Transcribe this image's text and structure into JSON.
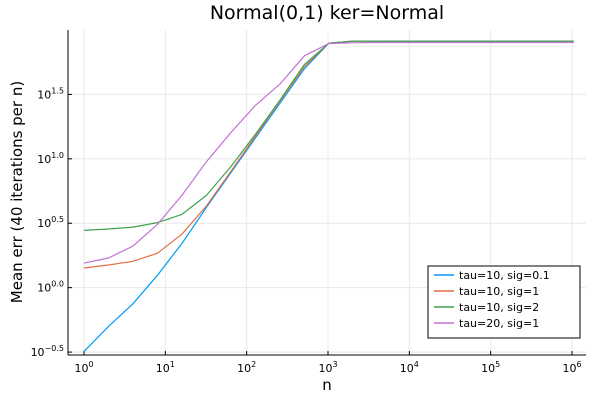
{
  "chart_data": {
    "type": "line",
    "title": "Normal(0,1) ker=Normal",
    "xlabel": "n",
    "ylabel": "Mean err (40 iterations per n)",
    "x_scale": "log10",
    "y_scale": "log10",
    "xlim": [
      1,
      1000000
    ],
    "ylim": [
      0.3,
      100
    ],
    "x_ticks": [
      {
        "value": 1,
        "base": "10",
        "exp": "0"
      },
      {
        "value": 10,
        "base": "10",
        "exp": "1"
      },
      {
        "value": 100,
        "base": "10",
        "exp": "2"
      },
      {
        "value": 1000,
        "base": "10",
        "exp": "3"
      },
      {
        "value": 10000,
        "base": "10",
        "exp": "4"
      },
      {
        "value": 100000,
        "base": "10",
        "exp": "5"
      },
      {
        "value": 1000000,
        "base": "10",
        "exp": "6"
      }
    ],
    "y_ticks": [
      {
        "value": 0.316,
        "base": "10",
        "exp": "−0.5"
      },
      {
        "value": 1,
        "base": "10",
        "exp": "0.0"
      },
      {
        "value": 3.162,
        "base": "10",
        "exp": "0.5"
      },
      {
        "value": 10,
        "base": "10",
        "exp": "1.0"
      },
      {
        "value": 31.62,
        "base": "10",
        "exp": "1.5"
      }
    ],
    "grid": true,
    "legend_position": "bottom-right",
    "x": [
      1,
      2,
      4,
      8,
      16,
      32,
      64,
      128,
      256,
      512,
      1024,
      2048,
      4096,
      8192,
      16384,
      32768,
      65536,
      131072,
      262144,
      524288,
      1048576
    ],
    "series": [
      {
        "name": "tau=10, sig=0.1",
        "color": "#009AFA",
        "values": [
          0.32,
          0.5,
          0.75,
          1.25,
          2.2,
          4.2,
          7.8,
          14.5,
          27,
          50,
          79,
          82,
          82,
          82,
          82,
          82,
          82,
          82,
          82,
          82,
          82
        ]
      },
      {
        "name": "tau=10, sig=1",
        "color": "#E36F47",
        "values": [
          1.42,
          1.5,
          1.6,
          1.85,
          2.6,
          4.3,
          8.0,
          15,
          28,
          52,
          79,
          82,
          82,
          82,
          82,
          82,
          82,
          82,
          82,
          82,
          82
        ]
      },
      {
        "name": "tau=10, sig=2",
        "color": "#3EA44E",
        "values": [
          2.78,
          2.85,
          2.95,
          3.2,
          3.7,
          5.2,
          8.7,
          15.5,
          28.5,
          54,
          79,
          82,
          82,
          82,
          82,
          82,
          82,
          82,
          82,
          82,
          82
        ]
      },
      {
        "name": "tau=20, sig=1",
        "color": "#C371D2",
        "values": [
          1.55,
          1.7,
          2.1,
          3.1,
          5.2,
          9.5,
          16,
          26,
          38,
          63,
          78.5,
          79.5,
          80,
          80,
          80,
          80,
          80,
          80,
          80,
          80,
          80
        ]
      }
    ]
  }
}
